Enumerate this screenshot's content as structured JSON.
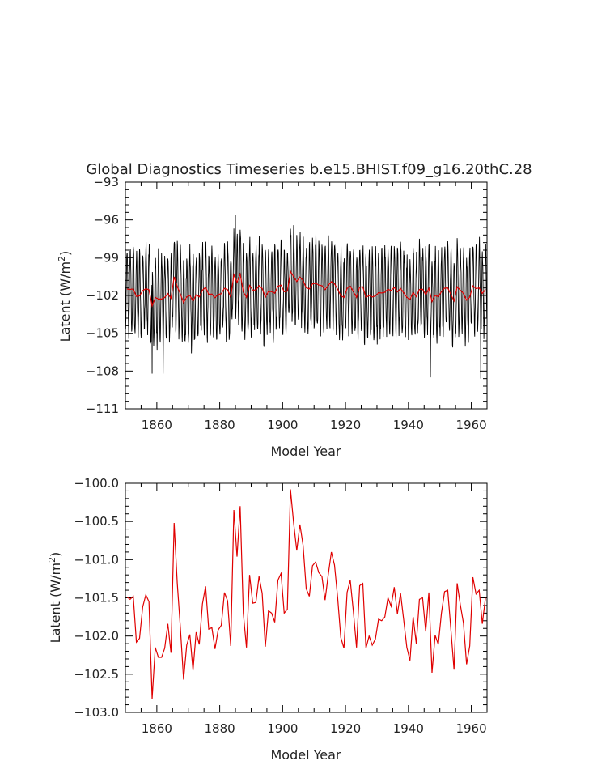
{
  "chart_data": [
    {
      "type": "line",
      "title": "Global Diagnostics Timeseries b.e15.BHIST.f09_g16.20thC.28",
      "xlabel": "Model Year",
      "ylabel": "Latent (W/m",
      "ylabel_sup": "2",
      "ylabel_close": ")",
      "xlim": [
        1850,
        1965
      ],
      "ylim": [
        -111,
        -93
      ],
      "xticks": [
        1860,
        1880,
        1900,
        1920,
        1940,
        1960
      ],
      "xtick_labels": [
        "1860",
        "1880",
        "1900",
        "1920",
        "1940",
        "1960"
      ],
      "yticks": [
        -93,
        -96,
        -99,
        -102,
        -105,
        -108,
        -111
      ],
      "ytick_labels": [
        "−93",
        "−96",
        "−99",
        "−102",
        "−105",
        "−108",
        "−111"
      ],
      "grid": false,
      "series": [
        {
          "kind": "monthly",
          "color": "#000000",
          "note_seasonal_amplitude": 3.3,
          "peaks": [
            [
              1885.0,
              -95.6
            ],
            [
              1902.5,
              -96.7
            ],
            [
              1947.0,
              -108.5
            ],
            [
              1963.0,
              -108.6
            ],
            [
              1858.5,
              -108.2
            ],
            [
              1862.0,
              -108.2
            ]
          ]
        },
        {
          "kind": "annual",
          "color": "#e00000",
          "values_ref": "annual_means"
        }
      ]
    },
    {
      "type": "line",
      "title": "",
      "xlabel": "Model Year",
      "ylabel": "Latent (W/m",
      "ylabel_sup": "2",
      "ylabel_close": ")",
      "xlim": [
        1850,
        1965
      ],
      "ylim": [
        -103.0,
        -100.0
      ],
      "xticks": [
        1860,
        1880,
        1900,
        1920,
        1940,
        1960
      ],
      "xtick_labels": [
        "1860",
        "1880",
        "1900",
        "1920",
        "1940",
        "1960"
      ],
      "yticks": [
        -100.0,
        -100.5,
        -101.0,
        -101.5,
        -102.0,
        -102.5,
        -103.0
      ],
      "ytick_labels": [
        "−100.0",
        "−100.5",
        "−101.0",
        "−101.5",
        "−102.0",
        "−102.5",
        "−103.0"
      ],
      "grid": false,
      "series": [
        {
          "kind": "annual",
          "color": "#e00000",
          "values_ref": "annual_means"
        }
      ]
    }
  ],
  "annual_means": {
    "x": [
      1850.5,
      1851.5,
      1852.5,
      1853.5,
      1854.5,
      1855.5,
      1856.5,
      1857.5,
      1858.5,
      1859.5,
      1860.5,
      1861.5,
      1862.5,
      1863.5,
      1864.5,
      1865.5,
      1866.5,
      1867.5,
      1868.5,
      1869.5,
      1870.5,
      1871.5,
      1872.5,
      1873.5,
      1874.5,
      1875.5,
      1876.5,
      1877.5,
      1878.5,
      1879.5,
      1880.5,
      1881.5,
      1882.5,
      1883.5,
      1884.5,
      1885.5,
      1886.5,
      1887.5,
      1888.5,
      1889.5,
      1890.5,
      1891.5,
      1892.5,
      1893.5,
      1894.5,
      1895.5,
      1896.5,
      1897.5,
      1898.5,
      1899.5,
      1900.5,
      1901.5,
      1902.5,
      1903.5,
      1904.5,
      1905.5,
      1906.5,
      1907.5,
      1908.5,
      1909.5,
      1910.5,
      1911.5,
      1912.5,
      1913.5,
      1914.5,
      1915.5,
      1916.5,
      1917.5,
      1918.5,
      1919.5,
      1920.5,
      1921.5,
      1922.5,
      1923.5,
      1924.5,
      1925.5,
      1926.5,
      1927.5,
      1928.5,
      1929.5,
      1930.5,
      1931.5,
      1932.5,
      1933.5,
      1934.5,
      1935.5,
      1936.5,
      1937.5,
      1938.5,
      1939.5,
      1940.5,
      1941.5,
      1942.5,
      1943.5,
      1944.5,
      1945.5,
      1946.5,
      1947.5,
      1948.5,
      1949.5,
      1950.5,
      1951.5,
      1952.5,
      1953.5,
      1954.5,
      1955.5,
      1956.5,
      1957.5,
      1958.5,
      1959.5,
      1960.5,
      1961.5,
      1962.5,
      1963.5,
      1964.5
    ],
    "y": [
      -101.49,
      -101.52,
      -101.48,
      -102.08,
      -102.03,
      -101.62,
      -101.46,
      -101.55,
      -102.82,
      -102.15,
      -102.28,
      -102.28,
      -102.16,
      -101.84,
      -102.22,
      -100.52,
      -101.31,
      -101.9,
      -102.57,
      -102.12,
      -101.98,
      -102.45,
      -101.95,
      -102.11,
      -101.58,
      -101.35,
      -101.91,
      -101.89,
      -102.17,
      -101.92,
      -101.86,
      -101.43,
      -101.54,
      -102.13,
      -100.35,
      -100.96,
      -100.3,
      -101.7,
      -102.15,
      -101.2,
      -101.57,
      -101.56,
      -101.22,
      -101.44,
      -102.14,
      -101.67,
      -101.7,
      -101.82,
      -101.27,
      -101.18,
      -101.7,
      -101.65,
      -100.08,
      -100.52,
      -100.88,
      -100.54,
      -100.81,
      -101.38,
      -101.48,
      -101.08,
      -101.03,
      -101.17,
      -101.22,
      -101.53,
      -101.2,
      -100.9,
      -101.07,
      -101.5,
      -102.02,
      -102.16,
      -101.43,
      -101.27,
      -101.68,
      -102.15,
      -101.34,
      -101.31,
      -102.16,
      -102.0,
      -102.12,
      -102.04,
      -101.78,
      -101.8,
      -101.75,
      -101.5,
      -101.61,
      -101.36,
      -101.71,
      -101.44,
      -101.79,
      -102.15,
      -102.32,
      -101.75,
      -102.1,
      -101.52,
      -101.5,
      -101.94,
      -101.43,
      -102.48,
      -101.99,
      -102.11,
      -101.7,
      -101.42,
      -101.4,
      -101.91,
      -102.44,
      -101.31,
      -101.59,
      -101.83,
      -102.37,
      -102.13,
      -101.23,
      -101.45,
      -101.4,
      -101.84,
      -101.5
    ]
  }
}
